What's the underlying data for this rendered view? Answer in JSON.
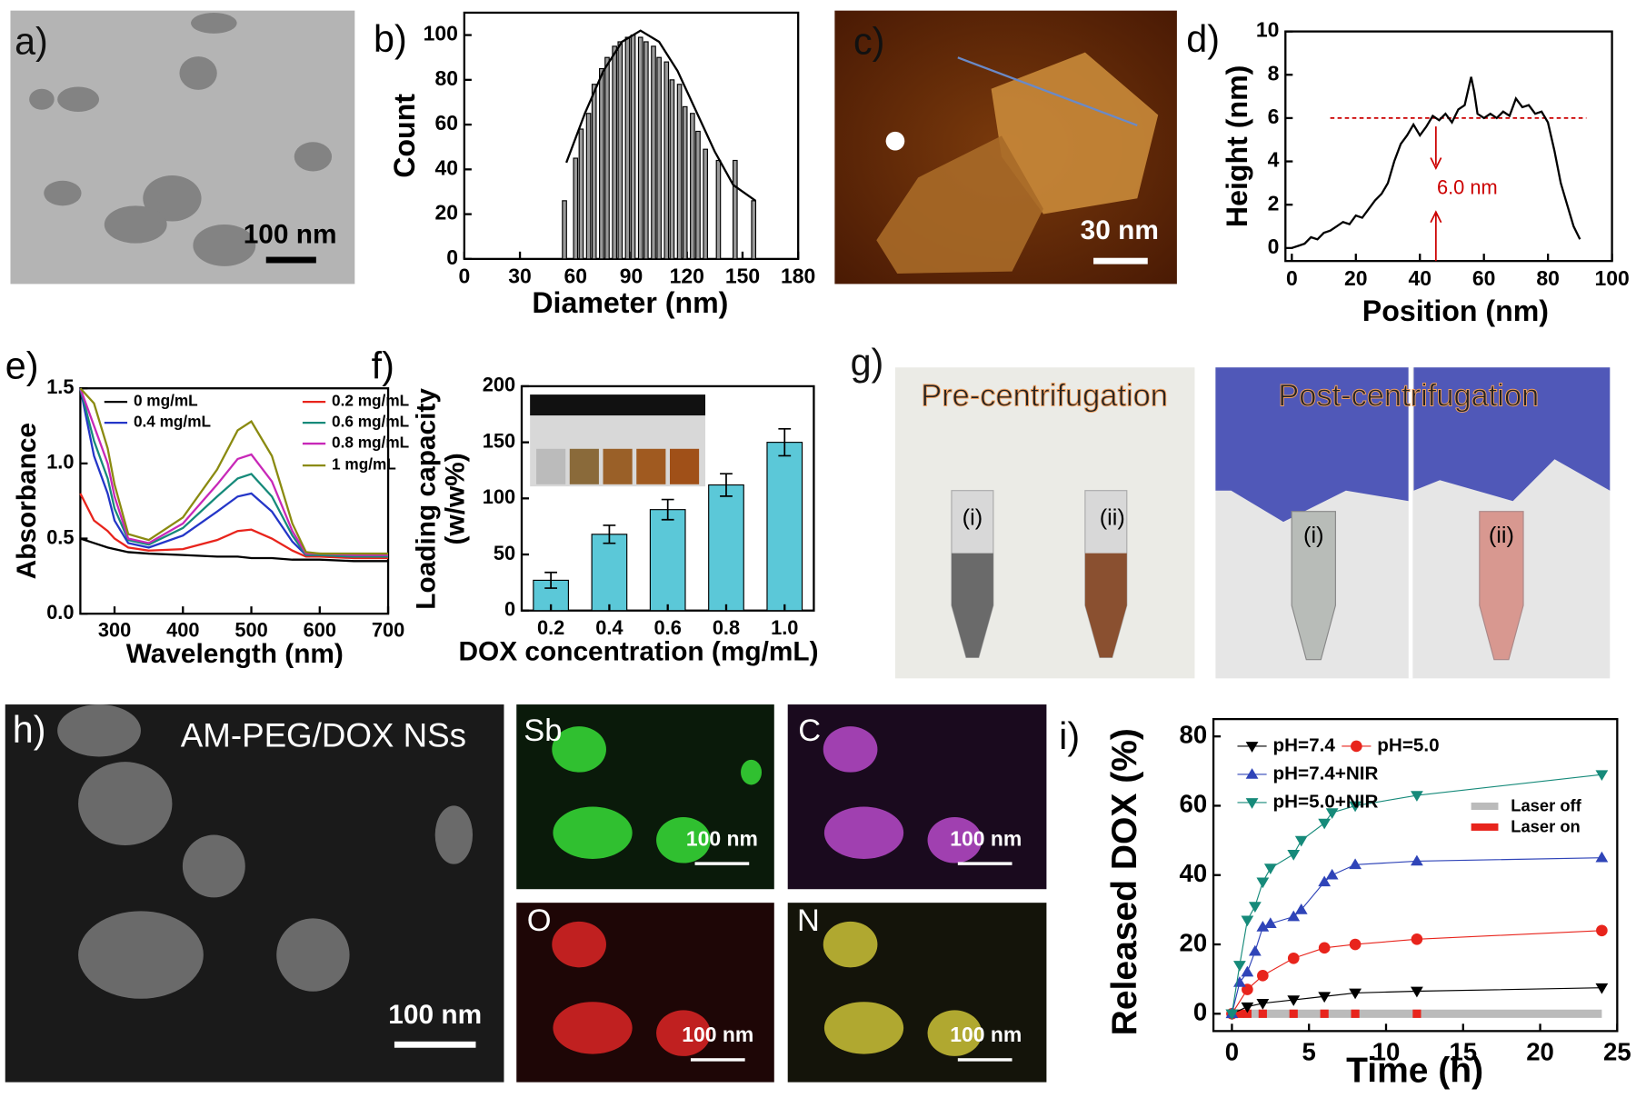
{
  "images": {
    "a": {
      "label": "a)",
      "scale": "100 nm"
    },
    "c": {
      "label": "c)",
      "scale": "30 nm"
    },
    "g": {
      "label": "g)",
      "left_title": "Pre-centrifugation",
      "right_title": "Post-centrifugation",
      "tubes": [
        "(i)",
        "(ii)",
        "(i)",
        "(ii)"
      ]
    },
    "h": {
      "label": "h)",
      "title": "AM-PEG/DOX NSs",
      "scale": "100 nm",
      "maps": [
        {
          "element": "Sb",
          "scale": "100 nm"
        },
        {
          "element": "C",
          "scale": "100 nm"
        },
        {
          "element": "O",
          "scale": "100 nm"
        },
        {
          "element": "N",
          "scale": "100 nm"
        }
      ]
    }
  },
  "chart_data": [
    {
      "type": "histogram",
      "panel_label": "b)",
      "xlabel": "Diameter (nm)",
      "ylabel": "Count",
      "x": [
        54,
        60,
        63,
        67,
        70,
        74,
        77,
        81,
        84,
        88,
        91,
        95,
        98,
        102,
        105,
        109,
        112,
        116,
        119,
        123,
        126,
        130,
        137,
        146,
        156
      ],
      "values": [
        26,
        45,
        58,
        65,
        78,
        85,
        90,
        95,
        97,
        99,
        100,
        99,
        97,
        95,
        90,
        88,
        80,
        78,
        68,
        65,
        57,
        49,
        44,
        44,
        26
      ],
      "color": "#9a9a9a",
      "fit": {
        "x": [
          55,
          65,
          75,
          85,
          95,
          105,
          115,
          125,
          135,
          145,
          157
        ],
        "values": [
          43,
          65,
          84,
          97,
          102,
          97,
          84,
          66,
          48,
          33,
          26
        ],
        "color": "#000000"
      },
      "xlim": [
        0,
        180
      ],
      "xticks": [
        0,
        30,
        60,
        90,
        120,
        150,
        180
      ],
      "ylim": [
        0,
        110
      ],
      "yticks": [
        0,
        20,
        40,
        60,
        80,
        100
      ]
    },
    {
      "type": "line",
      "panel_label": "d)",
      "xlabel": "Position (nm)",
      "ylabel": "Height (nm)",
      "x": [
        0,
        2,
        4,
        6,
        8,
        10,
        12,
        14,
        16,
        18,
        20,
        22,
        24,
        26,
        28,
        30,
        32,
        34,
        36,
        38,
        40,
        42,
        44,
        46,
        48,
        50,
        52,
        54,
        56,
        57,
        58,
        60,
        62,
        64,
        66,
        68,
        70,
        72,
        74,
        76,
        78,
        80,
        82,
        84,
        86,
        88,
        90
      ],
      "series": [
        {
          "color": "#000000",
          "values": [
            0,
            0.1,
            0.2,
            0.5,
            0.4,
            0.7,
            0.8,
            1.0,
            1.2,
            1.1,
            1.5,
            1.4,
            1.8,
            2.2,
            2.5,
            3.0,
            4.0,
            4.8,
            5.2,
            5.7,
            5.2,
            5.6,
            6.1,
            5.9,
            6.2,
            5.8,
            6.4,
            6.6,
            7.9,
            7.2,
            6.2,
            6.0,
            6.2,
            6.0,
            6.3,
            6.1,
            6.9,
            6.5,
            6.6,
            6.2,
            6.3,
            5.8,
            4.5,
            3.0,
            2.0,
            1.0,
            0.4
          ]
        }
      ],
      "reference": {
        "y": 6,
        "x": [
          12,
          92
        ],
        "color": "#cc0000",
        "annotation": "6.0 nm"
      },
      "xlim": [
        -2,
        100
      ],
      "xticks": [
        0,
        20,
        40,
        60,
        80,
        100
      ],
      "ylim": [
        -0.6,
        10
      ],
      "yticks": [
        0,
        2,
        4,
        6,
        8,
        10
      ]
    },
    {
      "type": "line",
      "panel_label": "e)",
      "xlabel": "Wavelength (nm)",
      "ylabel": "Absorbance",
      "x": [
        250,
        270,
        290,
        300,
        320,
        350,
        400,
        450,
        480,
        500,
        530,
        560,
        580,
        600,
        650,
        700
      ],
      "series": [
        {
          "name": "0 mg/mL",
          "color": "#000000",
          "values": [
            0.5,
            0.47,
            0.44,
            0.43,
            0.41,
            0.4,
            0.39,
            0.38,
            0.38,
            0.37,
            0.37,
            0.36,
            0.36,
            0.36,
            0.35,
            0.35
          ]
        },
        {
          "name": "0.2 mg/mL",
          "color": "#e8241c",
          "values": [
            0.8,
            0.62,
            0.55,
            0.5,
            0.44,
            0.42,
            0.43,
            0.49,
            0.55,
            0.56,
            0.5,
            0.42,
            0.38,
            0.38,
            0.37,
            0.37
          ]
        },
        {
          "name": "0.4 mg/mL",
          "color": "#2436c8",
          "values": [
            1.5,
            1.05,
            0.8,
            0.62,
            0.47,
            0.44,
            0.52,
            0.68,
            0.78,
            0.8,
            0.68,
            0.48,
            0.39,
            0.39,
            0.38,
            0.38
          ]
        },
        {
          "name": "0.6 mg/mL",
          "color": "#168a7a",
          "values": [
            1.5,
            1.15,
            0.9,
            0.7,
            0.49,
            0.46,
            0.57,
            0.78,
            0.9,
            0.93,
            0.78,
            0.52,
            0.39,
            0.39,
            0.38,
            0.38
          ]
        },
        {
          "name": "0.8 mg/mL",
          "color": "#c828b8",
          "values": [
            1.5,
            1.25,
            1.0,
            0.78,
            0.5,
            0.47,
            0.6,
            0.86,
            1.03,
            1.06,
            0.88,
            0.55,
            0.4,
            0.4,
            0.39,
            0.39
          ]
        },
        {
          "name": "1 mg/mL",
          "color": "#8a8a10",
          "values": [
            1.5,
            1.4,
            1.1,
            0.86,
            0.53,
            0.49,
            0.64,
            0.96,
            1.22,
            1.28,
            1.05,
            0.6,
            0.41,
            0.4,
            0.4,
            0.4
          ]
        }
      ],
      "xlim": [
        250,
        700
      ],
      "xticks": [
        300,
        400,
        500,
        600,
        700
      ],
      "ylim": [
        0,
        1.5
      ],
      "yticks": [
        {
          "value": 0,
          "label": "0.0"
        },
        0.5,
        {
          "value": 1,
          "label": "1.0"
        },
        1.5
      ]
    },
    {
      "type": "bar",
      "panel_label": "f)",
      "xlabel": "DOX concentration (mg/mL)",
      "ylabel": [
        "Loading capacity",
        "(w/w%)"
      ],
      "categories": [
        "0.2",
        "0.4",
        "0.6",
        "0.8",
        "1.0"
      ],
      "values": [
        27,
        68,
        90,
        112,
        150
      ],
      "errors": [
        7,
        8,
        9,
        10,
        12
      ],
      "color": "#5bc8d8",
      "ylim": [
        0,
        200
      ],
      "yticks": [
        0,
        50,
        100,
        150,
        200
      ]
    },
    {
      "type": "scatter",
      "panel_label": "i)",
      "xlabel": "Time (h)",
      "ylabel": "Released DOX  (%)",
      "series": [
        {
          "name": "pH=7.4",
          "color": "#000000",
          "marker": "triangle-down",
          "x": [
            0,
            1,
            2,
            4,
            6,
            8,
            12,
            24
          ],
          "values": [
            0,
            2,
            3,
            4,
            5,
            6,
            6.5,
            7.5
          ]
        },
        {
          "name": "pH=5.0",
          "color": "#e8241c",
          "marker": "circle",
          "x": [
            0,
            1,
            2,
            4,
            6,
            8,
            12,
            24
          ],
          "values": [
            0,
            7,
            11,
            16,
            19,
            20,
            21.5,
            24
          ]
        },
        {
          "name": "pH=7.4+NIR",
          "color": "#2f44b8",
          "marker": "triangle-up",
          "x": [
            0,
            0.5,
            1,
            1.5,
            2,
            2.5,
            4,
            4.5,
            6,
            6.5,
            8,
            12,
            24
          ],
          "values": [
            0,
            9,
            12,
            18,
            25,
            26,
            28,
            30,
            38,
            40,
            43,
            44,
            45
          ]
        },
        {
          "name": "pH=5.0+NIR",
          "color": "#168a7a",
          "marker": "triangle-down",
          "x": [
            0,
            0.5,
            1,
            1.5,
            2,
            2.5,
            4,
            4.5,
            6,
            6.5,
            8,
            12,
            24
          ],
          "values": [
            0,
            14,
            27,
            31,
            38,
            42,
            46,
            50,
            55,
            58,
            60,
            63,
            69
          ]
        }
      ],
      "laser": {
        "off_label": "Laser off",
        "off_color": "#bbbbbb",
        "off_range": [
          0,
          24
        ],
        "on_label": "Laser on",
        "on_color": "#e8241c",
        "on_x": [
          0.5,
          1,
          2,
          4,
          6,
          8,
          12
        ]
      },
      "xlim": [
        -1.2,
        25
      ],
      "xticks": [
        0,
        5,
        10,
        15,
        20,
        25
      ],
      "ylim": [
        -5,
        85
      ],
      "yticks": [
        0,
        20,
        40,
        60,
        80
      ]
    }
  ]
}
